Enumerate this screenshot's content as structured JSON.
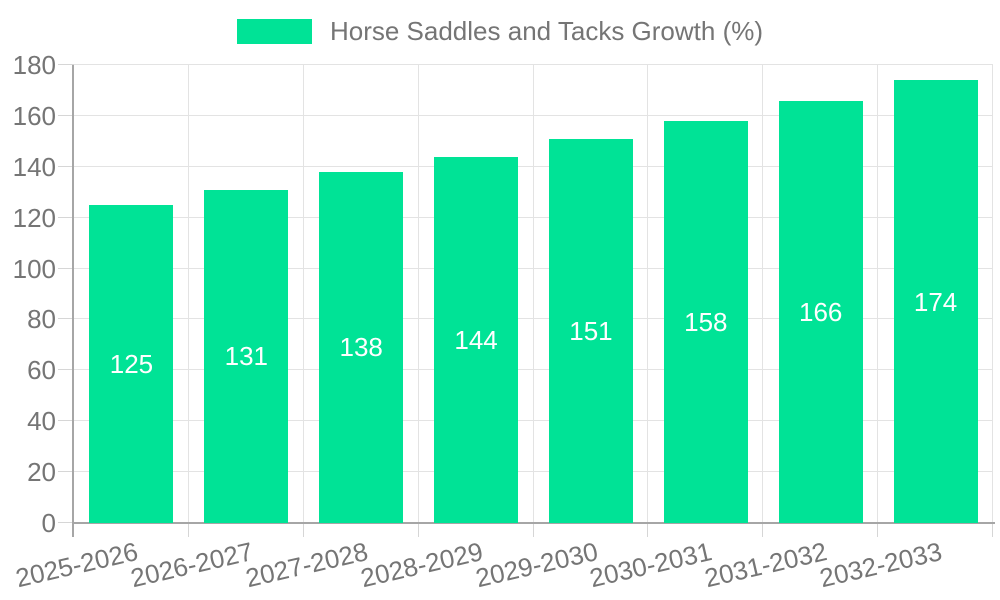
{
  "chart_data": {
    "type": "bar",
    "title": "Horse Saddles and Tacks Growth (%)",
    "categories": [
      "2025-2026",
      "2026-2027",
      "2027-2028",
      "2028-2029",
      "2029-2030",
      "2030-2031",
      "2031-2032",
      "2032-2033"
    ],
    "values": [
      125,
      131,
      138,
      144,
      151,
      158,
      166,
      174
    ],
    "xlabel": "",
    "ylabel": "",
    "ylim": [
      0,
      180
    ],
    "yticks": [
      0,
      20,
      40,
      60,
      80,
      100,
      120,
      140,
      160,
      180
    ],
    "grid": true,
    "legend_position": "top",
    "value_label_position": "inside-middle",
    "colors": {
      "bar": "#00E396",
      "axis_text": "#757575",
      "value_label_text": "#FFFFFF",
      "gridline": "#E3E3E3",
      "tick": "#D6D6D6",
      "axis_line": "#A6A6A6",
      "background": "#FFFFFF"
    }
  }
}
